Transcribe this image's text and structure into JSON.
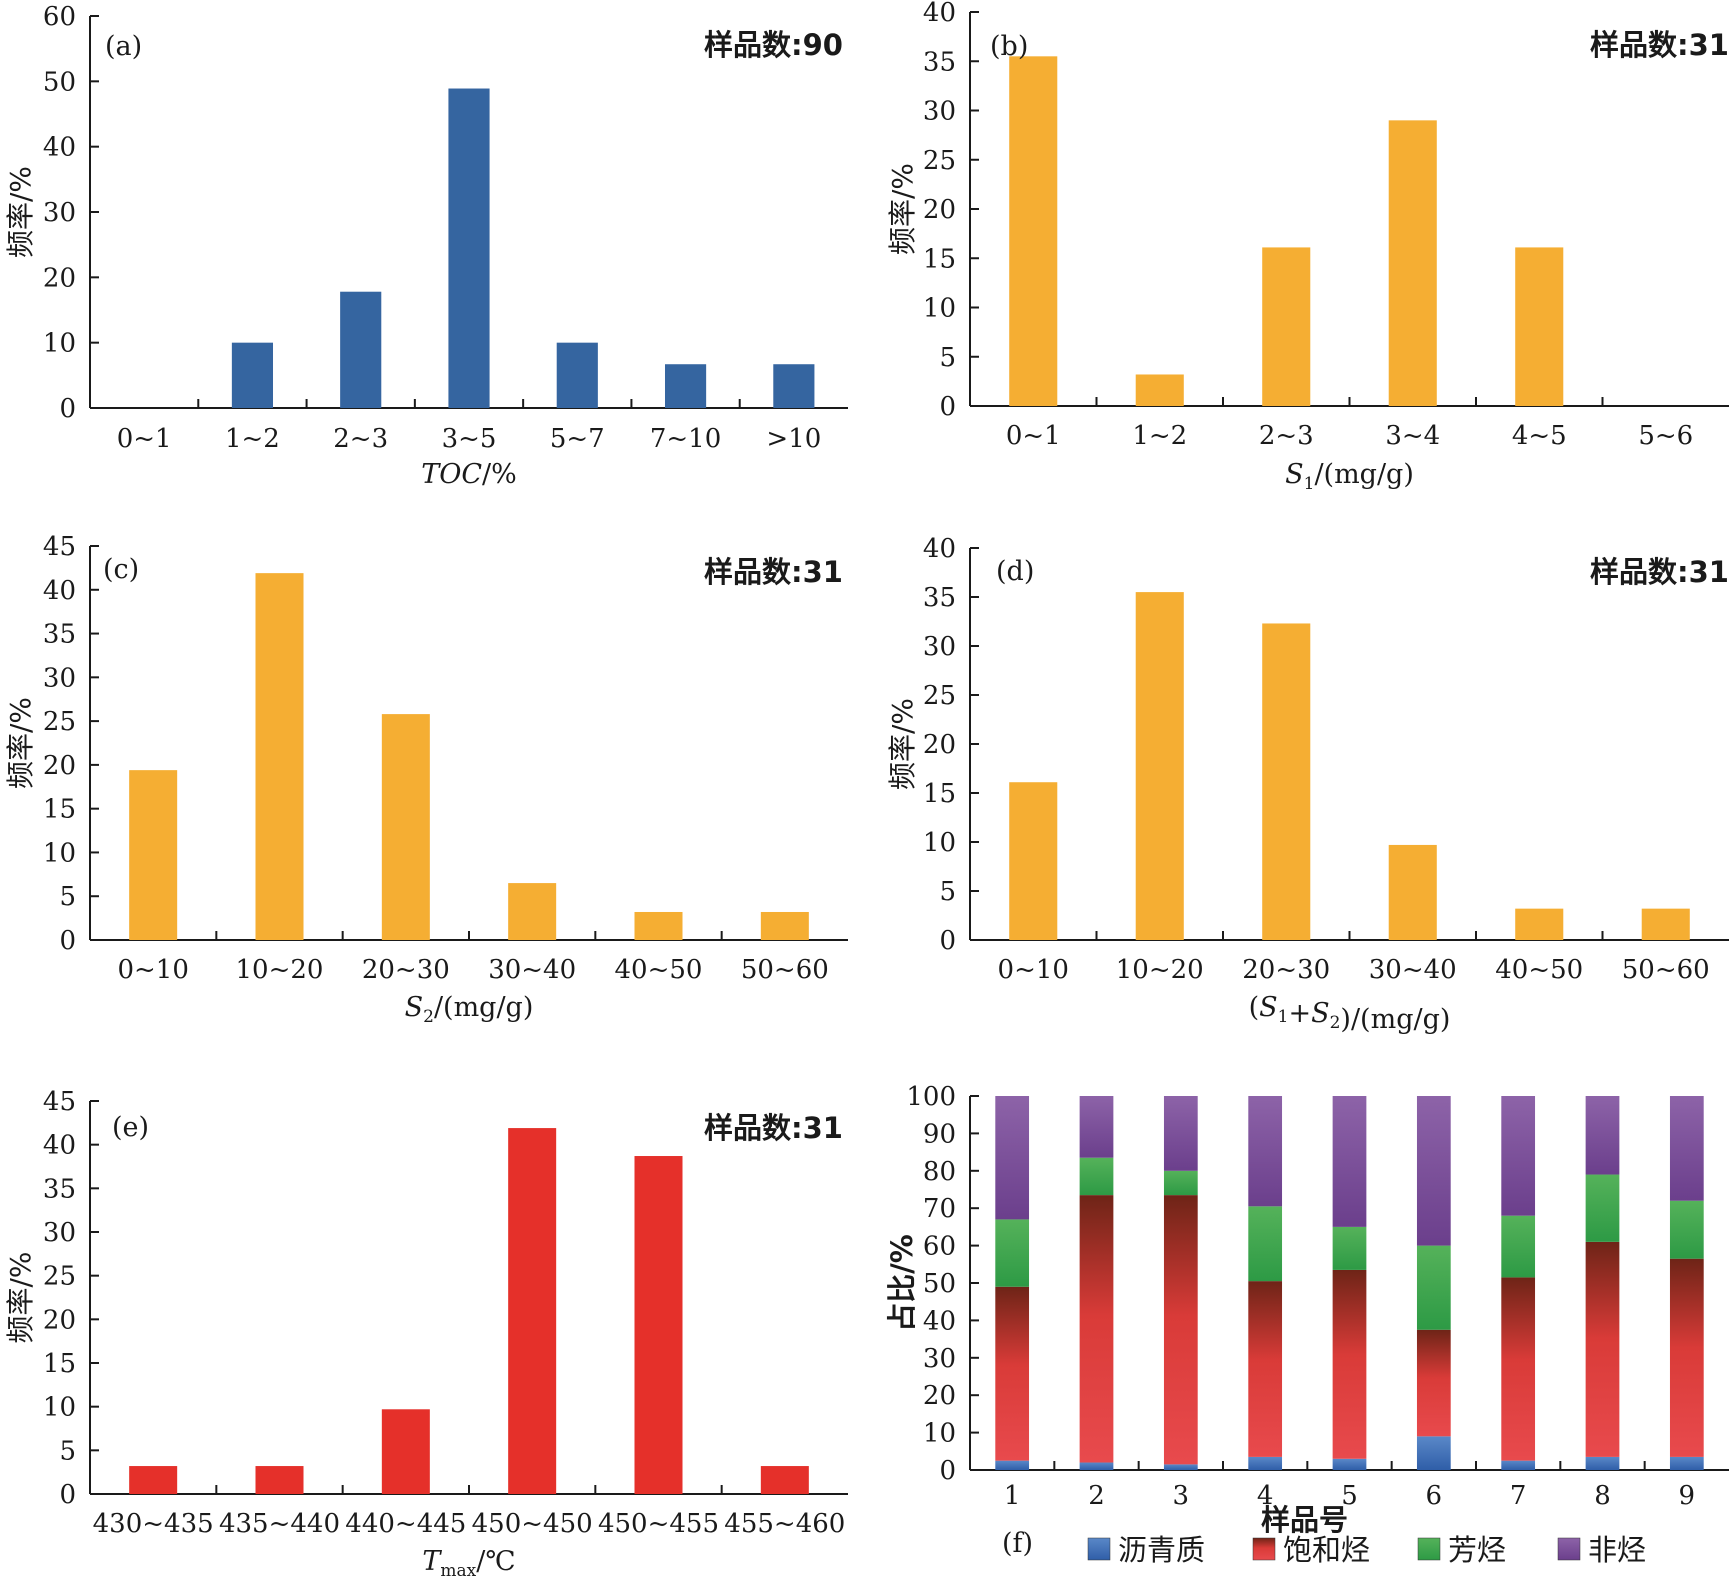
{
  "chart_data": [
    {
      "type": "bar",
      "panel": "(a)",
      "sample_count_label": "样品数:90",
      "ylabel": "频率/%",
      "xlabel": "TOC/%",
      "xlabel_italic_part": "TOC",
      "xlabel_rest": "/%",
      "categories": [
        "0~1",
        "1~2",
        "2~3",
        "3~5",
        "5~7",
        "7~10",
        ">10"
      ],
      "values": [
        0,
        10,
        17.8,
        48.9,
        10,
        6.7,
        6.7
      ],
      "ylim": [
        0,
        60
      ],
      "yticks": [
        0,
        10,
        20,
        30,
        40,
        50,
        60
      ],
      "color": "#3565a0"
    },
    {
      "type": "bar",
      "panel": "(b)",
      "sample_count_label": "样品数:31",
      "ylabel": "频率/%",
      "xlabel": "S1/(mg/g)",
      "xlabel_italic_part": "S",
      "xlabel_sub": "1",
      "xlabel_rest": "/(mg/g)",
      "categories": [
        "0~1",
        "1~2",
        "2~3",
        "3~4",
        "4~5",
        "5~6"
      ],
      "values": [
        35.5,
        3.2,
        16.1,
        29,
        16.1,
        0
      ],
      "ylim": [
        0,
        40
      ],
      "yticks": [
        0,
        5,
        10,
        15,
        20,
        25,
        30,
        35,
        40
      ],
      "color": "#f5ae33"
    },
    {
      "type": "bar",
      "panel": "(c)",
      "sample_count_label": "样品数:31",
      "ylabel": "频率/%",
      "xlabel": "S2/(mg/g)",
      "xlabel_italic_part": "S",
      "xlabel_sub": "2",
      "xlabel_rest": "/(mg/g)",
      "categories": [
        "0~10",
        "10~20",
        "20~30",
        "30~40",
        "40~50",
        "50~60"
      ],
      "values": [
        19.4,
        41.9,
        25.8,
        6.5,
        3.2,
        3.2
      ],
      "ylim": [
        0,
        45
      ],
      "yticks": [
        0,
        5,
        10,
        15,
        20,
        25,
        30,
        35,
        40,
        45
      ],
      "color": "#f5ae33"
    },
    {
      "type": "bar",
      "panel": "(d)",
      "sample_count_label": "样品数:31",
      "ylabel": "频率/%",
      "xlabel": "(S1+S2)/(mg/g)",
      "categories": [
        "0~10",
        "10~20",
        "20~30",
        "30~40",
        "40~50",
        "50~60"
      ],
      "values": [
        16.1,
        35.5,
        32.3,
        9.7,
        3.2,
        3.2
      ],
      "ylim": [
        0,
        40
      ],
      "yticks": [
        0,
        5,
        10,
        15,
        20,
        25,
        30,
        35,
        40
      ],
      "color": "#f5ae33"
    },
    {
      "type": "bar",
      "panel": "(e)",
      "sample_count_label": "样品数:31",
      "ylabel": "频率/%",
      "xlabel": "Tmax/℃",
      "xlabel_italic_part": "T",
      "xlabel_sub": "max",
      "xlabel_rest": "/℃",
      "categories": [
        "430~435",
        "435~440",
        "440~445",
        "450~450",
        "450~455",
        "455~460"
      ],
      "values": [
        3.2,
        3.2,
        9.7,
        41.9,
        38.7,
        3.2
      ],
      "ylim": [
        0,
        45
      ],
      "yticks": [
        0,
        5,
        10,
        15,
        20,
        25,
        30,
        35,
        40,
        45
      ],
      "color": "#e5302a"
    },
    {
      "type": "bar",
      "stacked": true,
      "panel": "(f)",
      "ylabel": "占比/%",
      "xlabel": "样品号",
      "categories": [
        "1",
        "2",
        "3",
        "4",
        "5",
        "6",
        "7",
        "8",
        "9"
      ],
      "ylim": [
        0,
        100
      ],
      "yticks": [
        0,
        10,
        20,
        30,
        40,
        50,
        60,
        70,
        80,
        90,
        100
      ],
      "series": [
        {
          "name": "沥青质",
          "values": [
            2.5,
            2,
            1.5,
            3.5,
            3,
            9,
            2.5,
            3.5,
            3.5
          ],
          "color": "#3e6db5"
        },
        {
          "name": "饱和烃",
          "values": [
            46.5,
            71.5,
            72,
            47,
            50.5,
            28.5,
            49,
            57.5,
            53
          ],
          "color": "#e0383a"
        },
        {
          "name": "芳烃",
          "values": [
            18,
            10,
            6.5,
            20,
            11.5,
            22.5,
            16.5,
            18,
            15.5
          ],
          "color": "#3aa64a"
        },
        {
          "name": "非烃",
          "values": [
            33,
            16.5,
            20,
            29.5,
            35,
            40,
            32,
            21,
            28
          ],
          "color": "#8659a0"
        }
      ]
    }
  ]
}
